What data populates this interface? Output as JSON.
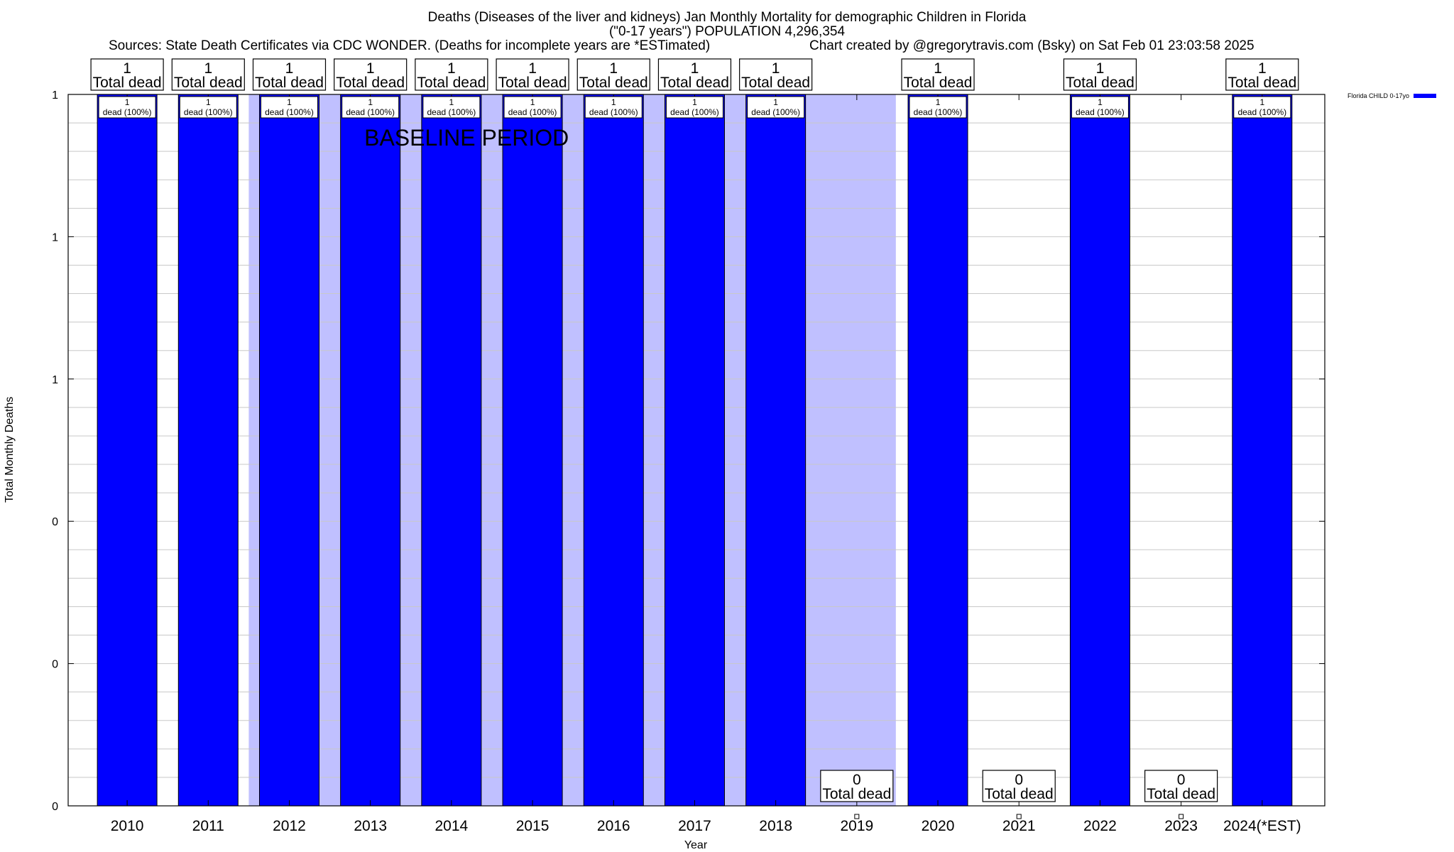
{
  "chart_data": {
    "type": "bar",
    "title": "Deaths (Diseases of the liver and kidneys) Jan Monthly Mortality for demographic Children in Florida",
    "subtitle": "(\"0-17 years\") POPULATION 4,296,354",
    "sources": "Sources: State Death Certificates via CDC WONDER. (Deaths for incomplete years are *ESTimated)",
    "credit": "Chart created by @gregorytravis.com (Bsky) on Sat Feb 01 23:03:58 2025",
    "xlabel": "Year",
    "ylabel": "Total Monthly Deaths",
    "categories": [
      "2010",
      "2011",
      "2012",
      "2013",
      "2014",
      "2015",
      "2016",
      "2017",
      "2018",
      "2019",
      "2020",
      "2021",
      "2022",
      "2023",
      "2024(*EST)"
    ],
    "series": [
      {
        "name": "Florida CHILD 0-17yo",
        "values": [
          1,
          1,
          1,
          1,
          1,
          1,
          1,
          1,
          1,
          0,
          1,
          0,
          1,
          0,
          1
        ]
      }
    ],
    "ylim": [
      0,
      1
    ],
    "y_ticks": [
      {
        "value": 0,
        "label": "0"
      },
      {
        "value": 0.2,
        "label": "0"
      },
      {
        "value": 0.4,
        "label": "0"
      },
      {
        "value": 0.6,
        "label": "1"
      },
      {
        "value": 0.8,
        "label": "1"
      },
      {
        "value": 1,
        "label": "1"
      }
    ],
    "total_labels": [
      "1\nTotal dead",
      "1\nTotal dead",
      "1\nTotal dead",
      "1\nTotal dead",
      "1\nTotal dead",
      "1\nTotal dead",
      "1\nTotal dead",
      "1\nTotal dead",
      "1\nTotal dead",
      "0\nTotal dead",
      "1\nTotal dead",
      "0\nTotal dead",
      "1\nTotal dead",
      "0\nTotal dead",
      "1\nTotal dead"
    ],
    "segment_labels": [
      "1\ndead (100%)",
      "1\ndead (100%)",
      "1\ndead (100%)",
      "1\ndead (100%)",
      "1\ndead (100%)",
      "1\ndead (100%)",
      "1\ndead (100%)",
      "1\ndead (100%)",
      "1\ndead (100%)",
      "",
      "1\ndead (100%)",
      "",
      "1\ndead (100%)",
      "",
      "1\ndead (100%)"
    ],
    "annotation": "BASELINE PERIOD",
    "baseline_range": [
      "2012",
      "2019"
    ],
    "grid": true,
    "legend_position": "top-right",
    "colors": {
      "bar": "#0000ff",
      "baseline": "#c0c0ff",
      "grid": "#c8c8c8"
    }
  }
}
